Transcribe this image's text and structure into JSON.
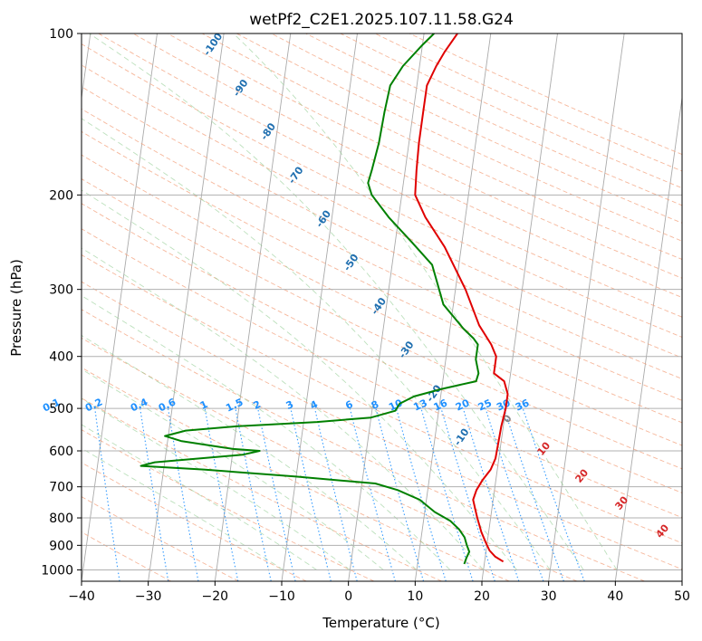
{
  "chart_data": {
    "type": "line",
    "chart_kind": "skew-T log-P diagram",
    "title": "wetPf2_C2E1.2025.107.11.58.G24",
    "xlabel": "Temperature (°C)",
    "ylabel": "Pressure (hPa)",
    "xlim": [
      -40,
      50
    ],
    "ylim": [
      1050,
      100
    ],
    "y_scale": "log",
    "grid": true,
    "x_ticks": [
      -40,
      -30,
      -20,
      -10,
      0,
      10,
      20,
      30,
      40,
      50
    ],
    "y_ticks": [
      100,
      200,
      300,
      400,
      500,
      600,
      700,
      800,
      900,
      1000
    ],
    "series": [
      {
        "name": "",
        "color": "#e00000",
        "points": [
          [
            22.8,
            965
          ],
          [
            21.5,
            945
          ],
          [
            20.5,
            920
          ],
          [
            19.8,
            890
          ],
          [
            18.9,
            850
          ],
          [
            18.0,
            800
          ],
          [
            17.5,
            770
          ],
          [
            17.0,
            740
          ],
          [
            17.3,
            710
          ],
          [
            18.0,
            680
          ],
          [
            19.0,
            650
          ],
          [
            19.5,
            620
          ],
          [
            19.6,
            580
          ],
          [
            19.7,
            540
          ],
          [
            20.0,
            500
          ],
          [
            20.0,
            470
          ],
          [
            19.2,
            445
          ],
          [
            17.5,
            430
          ],
          [
            17.5,
            400
          ],
          [
            16.5,
            380
          ],
          [
            14.3,
            350
          ],
          [
            11.5,
            300
          ],
          [
            7.5,
            250
          ],
          [
            4.0,
            220
          ],
          [
            2.0,
            200
          ],
          [
            1.7,
            180
          ],
          [
            1.5,
            160
          ],
          [
            1.5,
            140
          ],
          [
            1.5,
            125
          ],
          [
            2.5,
            115
          ],
          [
            3.5,
            108
          ],
          [
            5.0,
            100
          ]
        ]
      },
      {
        "name": "",
        "color": "#008000",
        "points": [
          [
            17.0,
            975
          ],
          [
            17.2,
            950
          ],
          [
            17.5,
            925
          ],
          [
            17.0,
            900
          ],
          [
            16.5,
            870
          ],
          [
            15.5,
            840
          ],
          [
            14.0,
            810
          ],
          [
            11.5,
            780
          ],
          [
            9.0,
            740
          ],
          [
            5.5,
            710
          ],
          [
            2.0,
            690
          ],
          [
            -10.0,
            670
          ],
          [
            -24.0,
            650
          ],
          [
            -33.5,
            640
          ],
          [
            -31.5,
            630
          ],
          [
            -18.5,
            610
          ],
          [
            -16.0,
            600
          ],
          [
            -20.0,
            595
          ],
          [
            -22.0,
            590
          ],
          [
            -28.0,
            575
          ],
          [
            -30.5,
            563
          ],
          [
            -27.5,
            550
          ],
          [
            -20.0,
            540
          ],
          [
            -8.0,
            530
          ],
          [
            0.0,
            520
          ],
          [
            3.5,
            505
          ],
          [
            4.0,
            490
          ],
          [
            6.0,
            475
          ],
          [
            10.0,
            460
          ],
          [
            15.0,
            445
          ],
          [
            15.2,
            430
          ],
          [
            14.5,
            405
          ],
          [
            14.5,
            380
          ],
          [
            13.7,
            370
          ],
          [
            12.0,
            355
          ],
          [
            8.5,
            320
          ],
          [
            6.0,
            270
          ],
          [
            2.5,
            245
          ],
          [
            -1.5,
            220
          ],
          [
            -4.5,
            200
          ],
          [
            -5.3,
            190
          ],
          [
            -5.0,
            180
          ],
          [
            -4.5,
            160
          ],
          [
            -4.3,
            140
          ],
          [
            -4.0,
            125
          ],
          [
            -2.5,
            115
          ],
          [
            0.0,
            105
          ],
          [
            1.5,
            100
          ]
        ]
      }
    ],
    "dry_adiabats_labels": [
      "-100",
      "-90",
      "-80",
      "-70",
      "-60",
      "-50",
      "-40",
      "-30",
      "-20",
      "-10"
    ],
    "mixing_ratio_labels": [
      "0.1",
      "0.2",
      "0.4",
      "0.6",
      "1",
      "1.5",
      "2",
      "3",
      "4",
      "6",
      "8",
      "10",
      "13",
      "16",
      "20",
      "25",
      "30",
      "36"
    ],
    "moist_adiabat_labels": [
      "0",
      "10",
      "20",
      "30",
      "40"
    ],
    "colors": {
      "temperature": "#e00000",
      "dewpoint": "#008000",
      "dry_adiabat_label": "#1f6fb0",
      "mixing_ratio_label": "#1e90ff",
      "moist_label": "#d62728"
    }
  }
}
